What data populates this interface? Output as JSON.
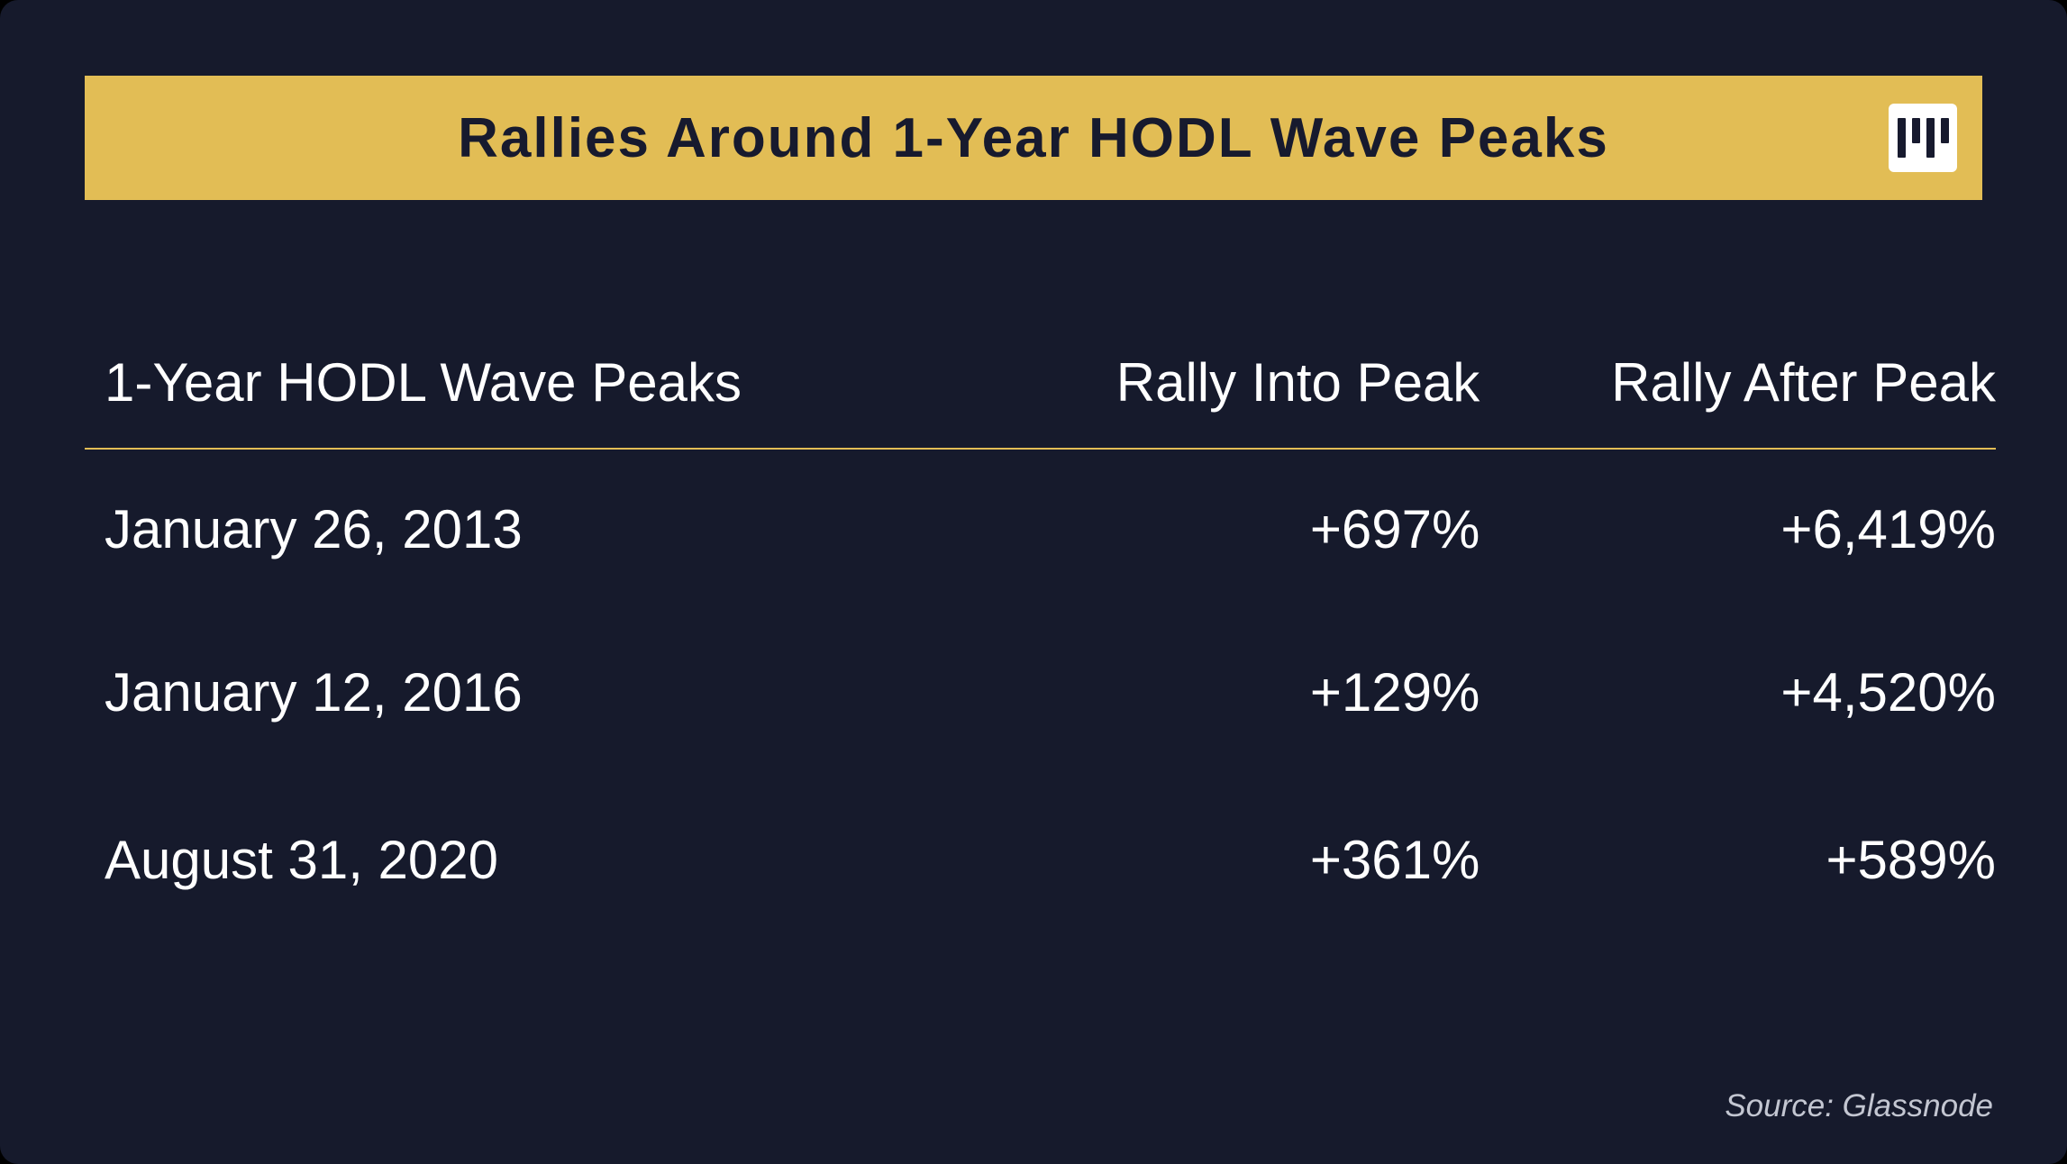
{
  "page": {
    "background": "#161a2c",
    "accent_gold": "#e2bd55",
    "text_dark": "#171a2e",
    "text_light": "#ffffff"
  },
  "banner": {
    "title": "Rallies Around 1-Year HODL Wave Peaks",
    "logo_icon": "vertical-bars-logo"
  },
  "table": {
    "headers": [
      "1-Year HODL Wave Peaks",
      "Rally Into Peak",
      "Rally After Peak"
    ],
    "rows": [
      {
        "peak": "January 26, 2013",
        "rally_into": "+697%",
        "rally_after": "+6,419%"
      },
      {
        "peak": "January 12, 2016",
        "rally_into": "+129%",
        "rally_after": "+4,520%"
      },
      {
        "peak": "August 31, 2020",
        "rally_into": "+361%",
        "rally_after": "+589%"
      }
    ]
  },
  "footer": {
    "source": "Source: Glassnode"
  },
  "chart_data": {
    "type": "table",
    "title": "Rallies Around 1-Year HODL Wave Peaks",
    "columns": [
      "1-Year HODL Wave Peaks",
      "Rally Into Peak",
      "Rally After Peak"
    ],
    "rows": [
      [
        "January 26, 2013",
        "+697%",
        "+6,419%"
      ],
      [
        "January 12, 2016",
        "+129%",
        "+4,520%"
      ],
      [
        "August 31, 2020",
        "+361%",
        "+589%"
      ]
    ],
    "rally_into_peak_pct": [
      697,
      129,
      361
    ],
    "rally_after_peak_pct": [
      6419,
      4520,
      589
    ],
    "source": "Glassnode"
  }
}
